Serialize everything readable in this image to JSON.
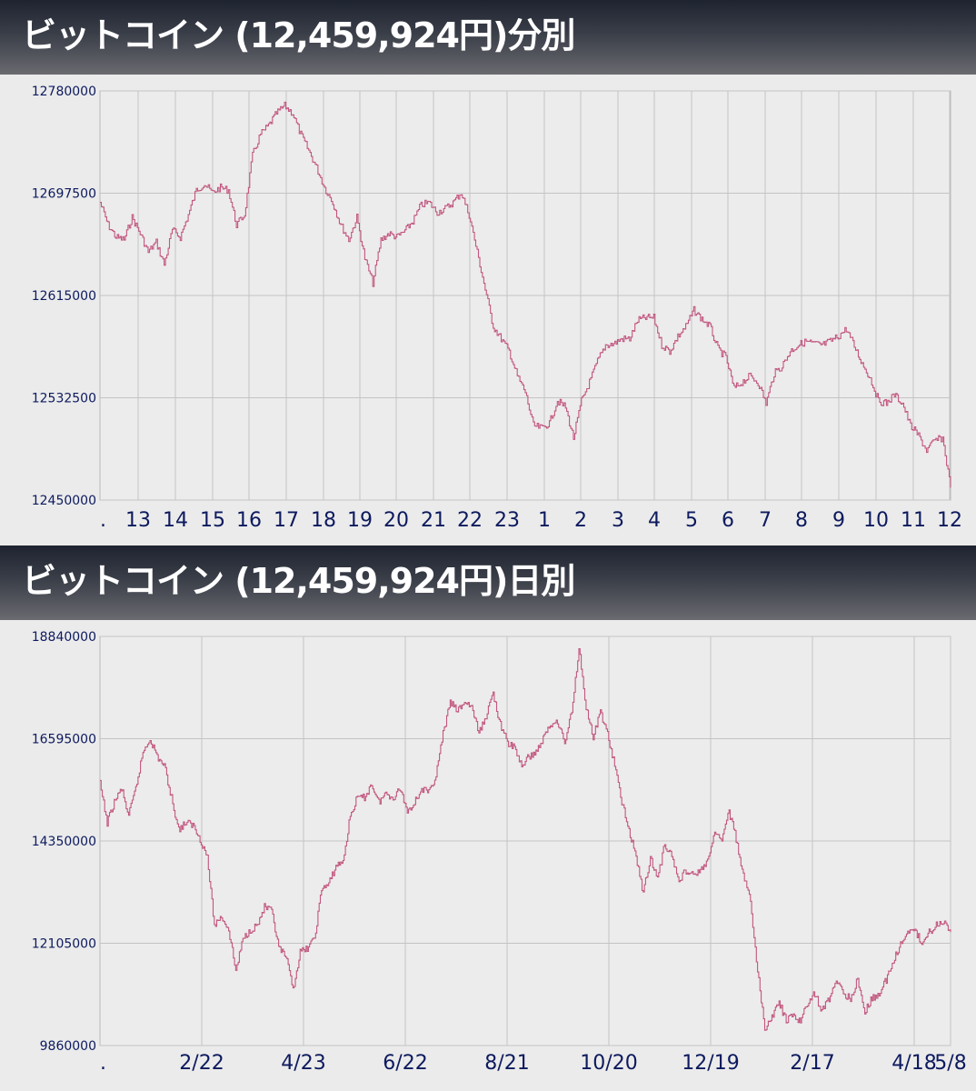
{
  "charts": [
    {
      "title": "ビットコイン (12,459,924円)分別",
      "chart_data": {
        "type": "line",
        "ylim": [
          12450000,
          12780000
        ],
        "y_ticks": [
          "12780000",
          "12697500",
          "12615000",
          "12532500",
          "12450000"
        ],
        "x_tick_labels": [
          ".",
          "13",
          "14",
          "15",
          "16",
          "17",
          "18",
          "19",
          "20",
          "21",
          "22",
          "23",
          "1",
          "2",
          "3",
          "4",
          "5",
          "6",
          "7",
          "8",
          "9",
          "10",
          "11",
          "12"
        ],
        "grid": true,
        "line_color": "#c2567f",
        "series": [
          {
            "values": [
              12690000,
              12672000,
              12662000,
              12660000,
              12678000,
              12665000,
              12650000,
              12658000,
              12640000,
              12668000,
              12662000,
              12680000,
              12700000,
              12705000,
              12698000,
              12702000,
              12700000,
              12672000,
              12680000,
              12728000,
              12745000,
              12752000,
              12762000,
              12768000,
              12762000,
              12745000,
              12732000,
              12718000,
              12702000,
              12690000,
              12672000,
              12660000,
              12678000,
              12645000,
              12625000,
              12660000,
              12665000,
              12662000,
              12667000,
              12675000,
              12688000,
              12690000,
              12682000,
              12685000,
              12690000,
              12698000,
              12680000,
              12650000,
              12620000,
              12590000,
              12580000,
              12570000,
              12550000,
              12537000,
              12510000,
              12508000,
              12512000,
              12530000,
              12525000,
              12500000,
              12530000,
              12545000,
              12562000,
              12575000,
              12576000,
              12580000,
              12580000,
              12595000,
              12597000,
              12597000,
              12575000,
              12570000,
              12582000,
              12590000,
              12603000,
              12596000,
              12590000,
              12572000,
              12565000,
              12540000,
              12545000,
              12550000,
              12545000,
              12528000,
              12552000,
              12558000,
              12570000,
              12575000,
              12578000,
              12576000,
              12575000,
              12578000,
              12582000,
              12588000,
              12574000,
              12560000,
              12548000,
              12530000,
              12528000,
              12535000,
              12528000,
              12510000,
              12502000,
              12490000,
              12498000,
              12500000,
              12460000
            ]
          }
        ]
      }
    },
    {
      "title": "ビットコイン (12,459,924円)日別",
      "chart_data": {
        "type": "line",
        "ylim": [
          9860000,
          18840000
        ],
        "y_ticks": [
          "18840000",
          "16595000",
          "14350000",
          "12105000",
          "9860000"
        ],
        "x_tick_labels": [
          ".",
          "2/22",
          "4/23",
          "6/22",
          "8/21",
          "10/20",
          "12/19",
          "2/17",
          "4/18",
          "5/8"
        ],
        "grid": true,
        "line_color": "#c2567f",
        "series": [
          {
            "values": [
              15600000,
              14750000,
              15200000,
              15500000,
              14900000,
              15500000,
              16300000,
              16600000,
              16200000,
              16000000,
              15300000,
              14600000,
              14750000,
              14700000,
              14400000,
              14000000,
              12500000,
              12700000,
              12400000,
              11500000,
              12200000,
              12400000,
              12500000,
              12900000,
              12800000,
              12000000,
              11800000,
              11100000,
              11900000,
              12000000,
              12200000,
              13300000,
              13400000,
              13800000,
              13900000,
              14900000,
              15300000,
              15300000,
              15600000,
              15200000,
              15400000,
              15300000,
              15500000,
              15000000,
              15200000,
              15500000,
              15400000,
              15800000,
              16700000,
              17400000,
              17200000,
              17400000,
              17300000,
              16700000,
              17100000,
              17600000,
              16900000,
              16500000,
              16400000,
              16000000,
              16200000,
              16300000,
              16600000,
              16900000,
              17000000,
              16500000,
              17200000,
              18600000,
              17300000,
              16600000,
              17200000,
              16700000,
              16000000,
              15200000,
              14600000,
              14000000,
              13200000,
              14000000,
              13500000,
              14300000,
              14000000,
              13500000,
              13700000,
              13600000,
              13700000,
              13900000,
              14500000,
              14400000,
              15000000,
              14400000,
              13600000,
              13000000,
              11500000,
              10200000,
              10500000,
              10800000,
              10400000,
              10500000,
              10400000,
              10800000,
              11000000,
              10600000,
              10900000,
              11300000,
              11000000,
              10900000,
              11300000,
              10600000,
              10900000,
              11000000,
              11300000,
              11700000,
              12100000,
              12300000,
              12400000,
              12100000,
              12350000,
              12500000,
              12600000,
              12350000
            ]
          }
        ]
      }
    }
  ]
}
